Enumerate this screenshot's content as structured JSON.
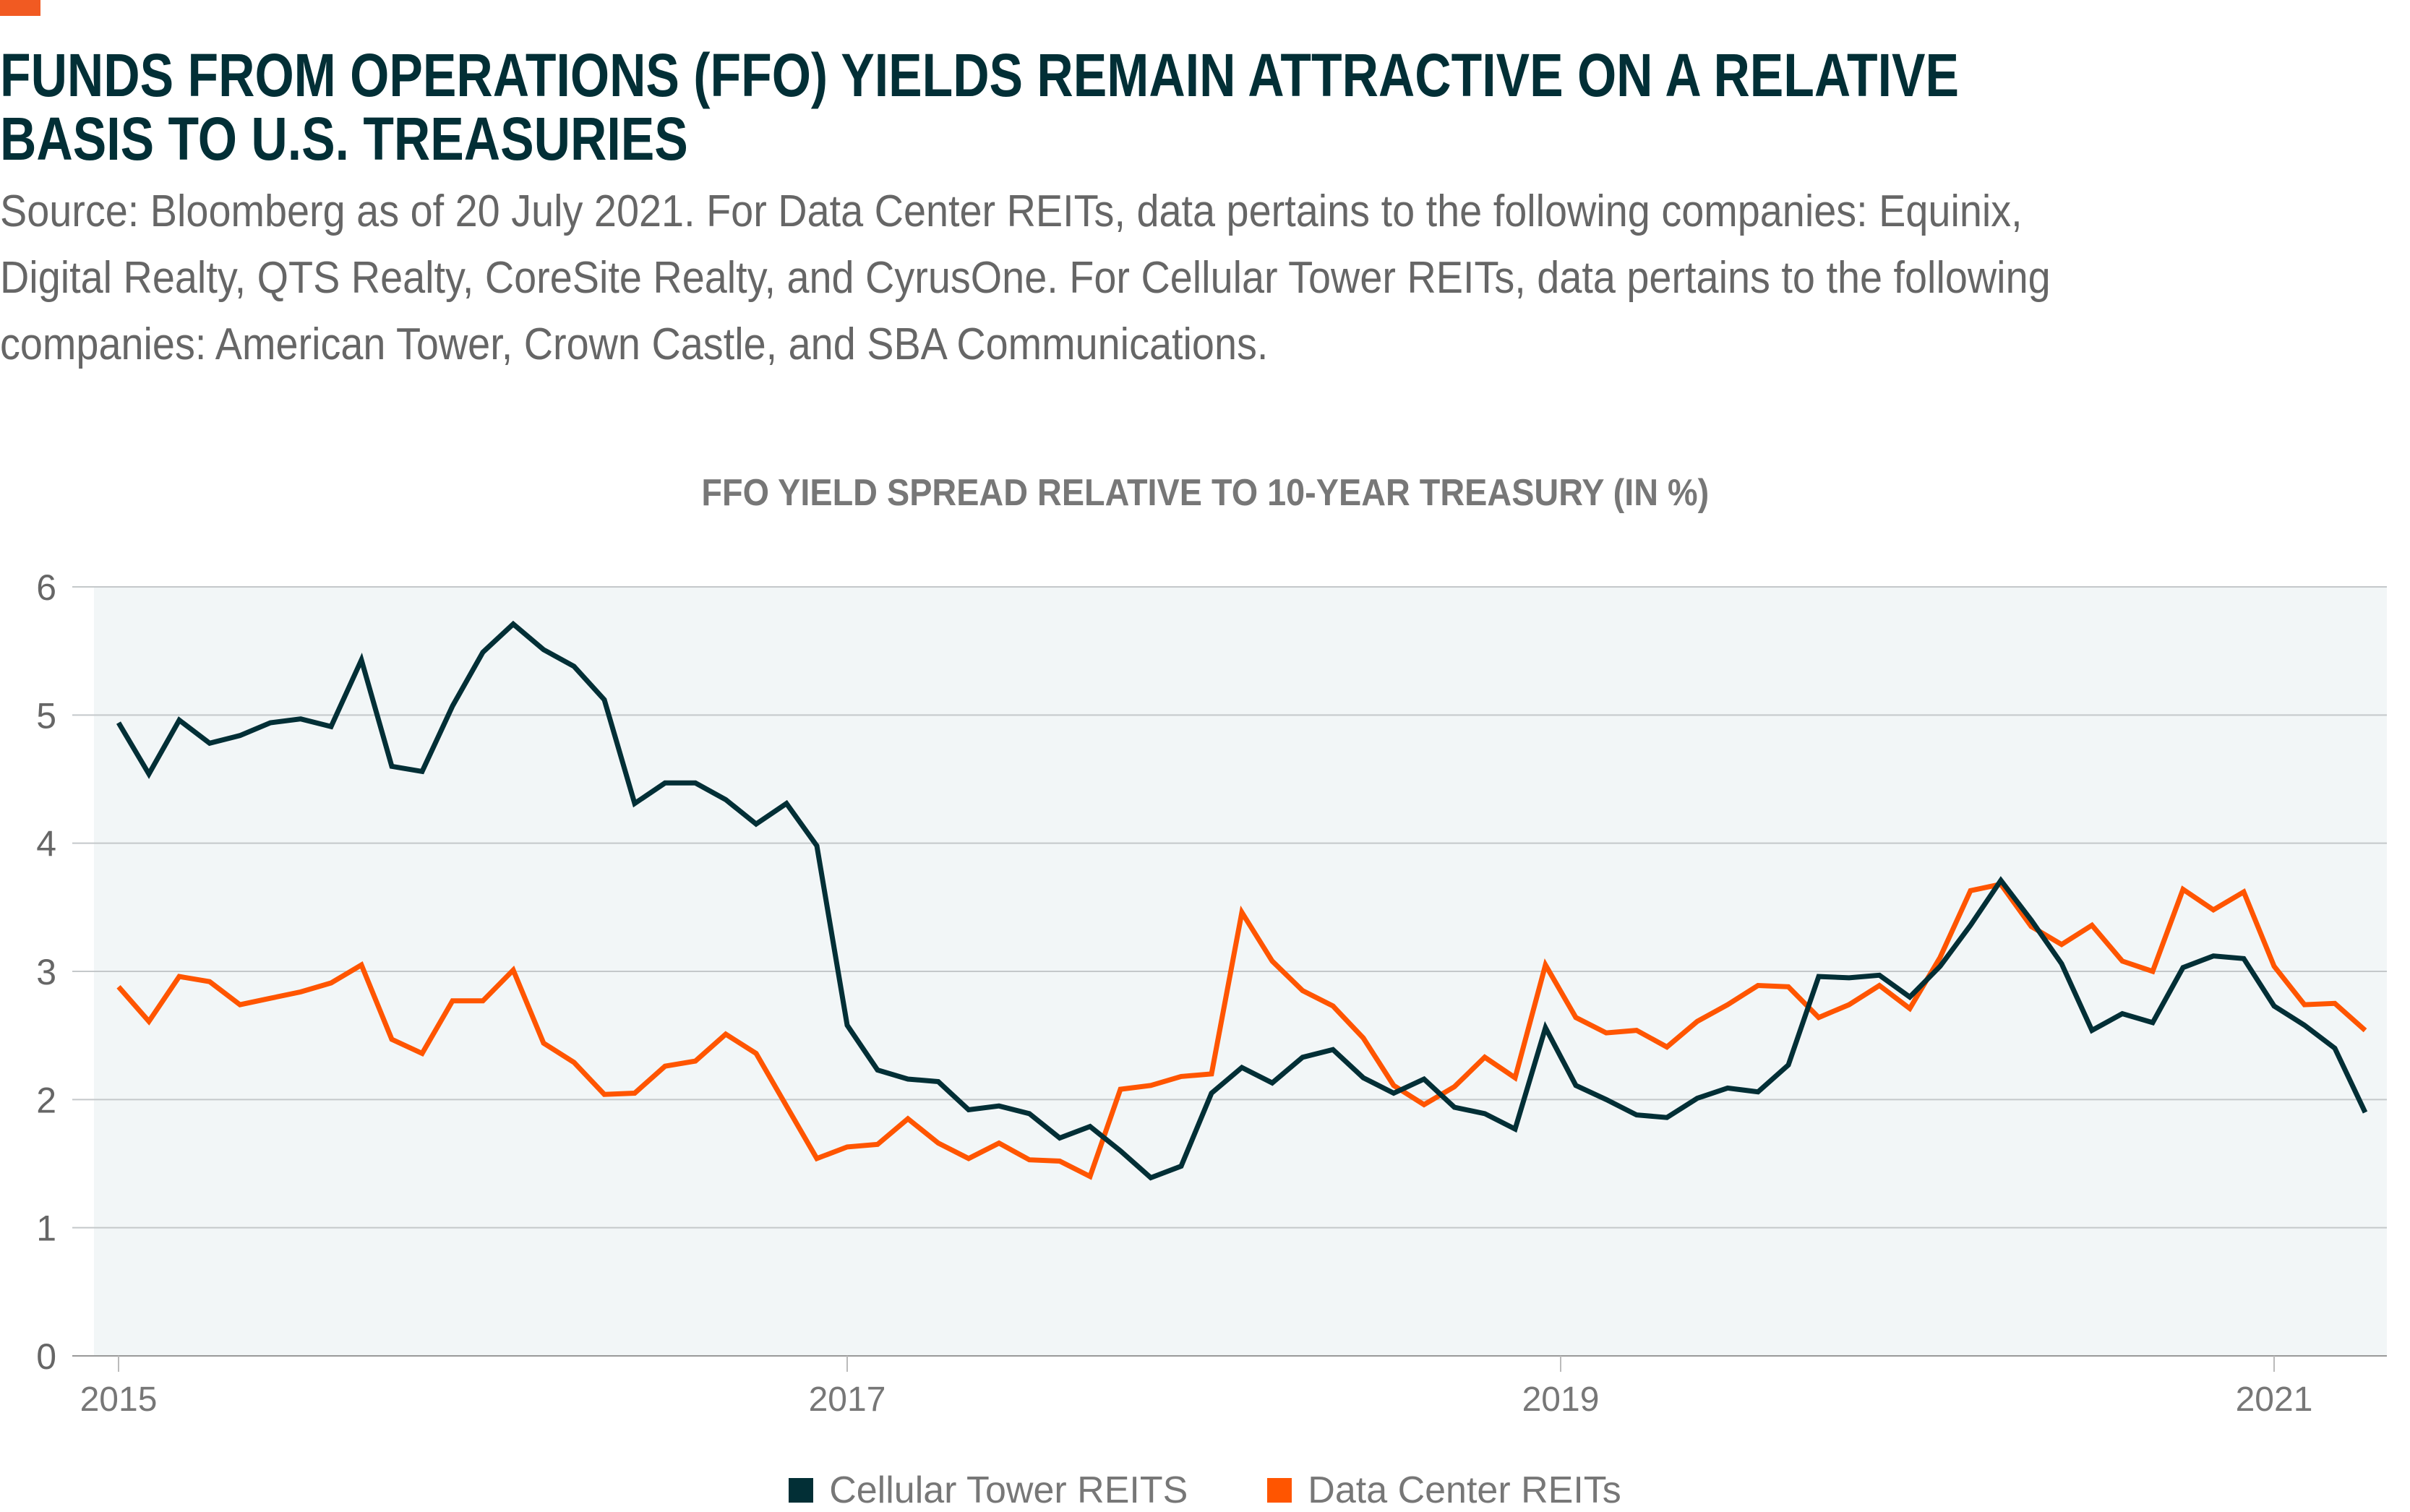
{
  "header": {
    "title_lines": [
      "FUNDS FROM OPERATIONS (FFO) YIELDS REMAIN ATTRACTIVE ON A RELATIVE",
      "BASIS TO U.S. TREASURIES"
    ],
    "source_lines": [
      "Source: Bloomberg as of 20 July 2021. For Data Center REITs, data pertains to the following companies: Equinix,",
      "Digital Realty, QTS Realty, CoreSite Realty, and CyrusOne. For Cellular Tower REITs, data pertains to the following",
      "companies: American Tower, Crown Castle, and SBA Communications."
    ],
    "accent_color": "#f15a22"
  },
  "chart_data": {
    "type": "line",
    "title": "FFO YIELD SPREAD RELATIVE TO 10-YEAR TREASURY (IN %)",
    "xlabel": "",
    "ylabel": "",
    "ylim": [
      0,
      6
    ],
    "yticks": [
      "0",
      "1",
      "2",
      "3",
      "4",
      "5",
      "6"
    ],
    "xticks": [
      {
        "label": "2015",
        "index": 0
      },
      {
        "label": "2017",
        "index": 24
      },
      {
        "label": "2019",
        "index": 47.5
      },
      {
        "label": "2021",
        "index": 71
      }
    ],
    "x_start": "2015-01",
    "x_frequency": "monthly",
    "grid": true,
    "legend_position": "bottom",
    "background": "#f2f6f7",
    "series": [
      {
        "name": "Cellular Tower REITS",
        "color": "#022f36",
        "values": [
          4.94,
          4.54,
          4.96,
          4.78,
          4.84,
          4.94,
          4.97,
          4.91,
          5.43,
          4.6,
          4.56,
          5.07,
          5.49,
          5.71,
          5.51,
          5.38,
          5.12,
          4.31,
          4.47,
          4.47,
          4.34,
          4.15,
          4.31,
          3.98,
          2.58,
          2.23,
          2.16,
          2.14,
          1.92,
          1.95,
          1.89,
          1.7,
          1.79,
          1.6,
          1.39,
          1.48,
          2.05,
          2.25,
          2.13,
          2.33,
          2.39,
          2.17,
          2.05,
          2.16,
          1.94,
          1.89,
          1.77,
          2.56,
          2.11,
          2.0,
          1.88,
          1.86,
          2.01,
          2.09,
          2.06,
          2.27,
          2.96,
          2.95,
          2.97,
          2.8,
          3.04,
          3.36,
          3.71,
          3.4,
          3.06,
          2.54,
          2.67,
          2.6,
          3.03,
          3.12,
          3.1,
          2.73,
          2.58,
          2.4,
          1.9
        ]
      },
      {
        "name": "Data Center REITs",
        "color": "#ff5500",
        "values": [
          2.88,
          2.61,
          2.96,
          2.92,
          2.74,
          2.79,
          2.84,
          2.91,
          3.05,
          2.47,
          2.36,
          2.77,
          2.77,
          3.01,
          2.44,
          2.29,
          2.04,
          2.05,
          2.26,
          2.3,
          2.51,
          2.36,
          1.95,
          1.54,
          1.63,
          1.65,
          1.85,
          1.66,
          1.54,
          1.66,
          1.53,
          1.52,
          1.4,
          2.08,
          2.11,
          2.18,
          2.2,
          3.46,
          3.08,
          2.85,
          2.73,
          2.48,
          2.11,
          1.96,
          2.1,
          2.33,
          2.17,
          3.05,
          2.64,
          2.52,
          2.54,
          2.41,
          2.61,
          2.74,
          2.89,
          2.88,
          2.64,
          2.74,
          2.89,
          2.71,
          3.11,
          3.63,
          3.68,
          3.35,
          3.21,
          3.36,
          3.08,
          3.0,
          3.64,
          3.48,
          3.62,
          3.04,
          2.74,
          2.75,
          2.54
        ]
      }
    ]
  }
}
